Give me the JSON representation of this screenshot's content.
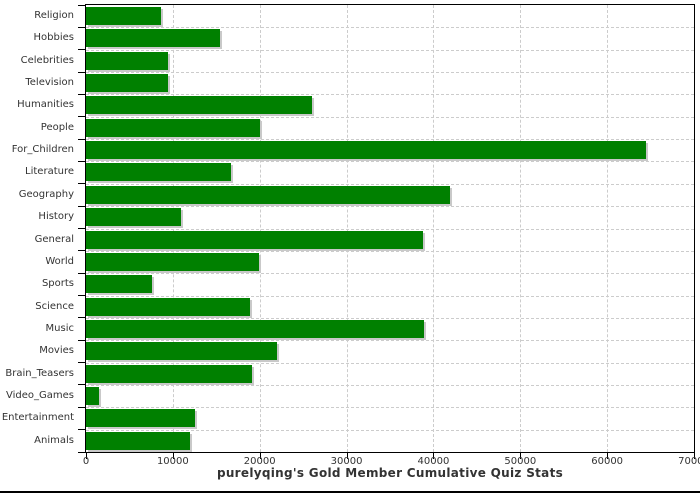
{
  "chart_data": {
    "type": "bar",
    "orientation": "horizontal",
    "title": "purelyqing's Gold Member Cumulative Quiz Stats",
    "categories": [
      "Religion",
      "Hobbies",
      "Celebrities",
      "Television",
      "Humanities",
      "People",
      "For_Children",
      "Literature",
      "Geography",
      "History",
      "General",
      "World",
      "Sports",
      "Science",
      "Music",
      "Movies",
      "Brain_Teasers",
      "Video_Games",
      "Entertainment",
      "Animals"
    ],
    "values": [
      8600,
      15400,
      9400,
      9400,
      26000,
      20000,
      64500,
      16700,
      41900,
      10900,
      38800,
      19900,
      7600,
      18900,
      38900,
      22000,
      19100,
      1500,
      12600,
      12000
    ],
    "xlim": [
      0,
      70000
    ],
    "x_ticks": [
      0,
      10000,
      20000,
      30000,
      40000,
      50000,
      60000,
      70000
    ],
    "xlabel": "",
    "ylabel": "",
    "legend": "none",
    "grid": "dashed",
    "colors": {
      "bar": "#008000",
      "bar_shadow": "#c9c9c9",
      "gridline": "#cccccc",
      "axis": "#000000",
      "text": "#333333",
      "background": "#ffffff"
    }
  }
}
